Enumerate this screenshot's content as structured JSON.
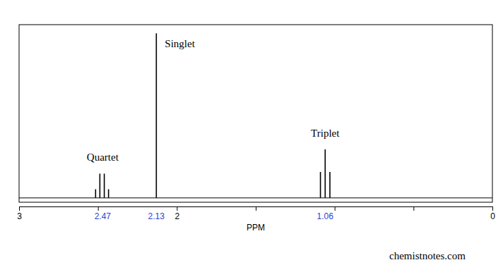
{
  "chart_data": {
    "type": "stem",
    "x_label": "PPM",
    "xlim": [
      3,
      0
    ],
    "xticks": [
      3,
      {
        "value": 2.5,
        "label": null
      },
      2,
      {
        "value": 1.5,
        "label": null
      },
      {
        "value": 1,
        "label": null
      },
      {
        "value": 0.5,
        "label": null
      },
      0
    ],
    "ylim": [
      -0.025,
      1
    ],
    "tick_labels": "x",
    "x": [
      2.515,
      2.488,
      2.46,
      2.433,
      2.13,
      1.09,
      1.06,
      1.03
    ],
    "values": [
      0.05,
      0.14,
      0.14,
      0.05,
      0.95,
      0.15,
      0.28,
      0.15
    ],
    "color": "#000000",
    "annotations": [
      {
        "text": "Quartet",
        "x": 2.47
      },
      {
        "text": "Singlet",
        "x": 2.13
      },
      {
        "text": "Triplet",
        "x": 1.06
      }
    ],
    "peak_labels": {
      "values": [
        2.47,
        2.13,
        1.06
      ],
      "color": "#2b3fd6"
    },
    "source": "chemistnotes.com"
  }
}
